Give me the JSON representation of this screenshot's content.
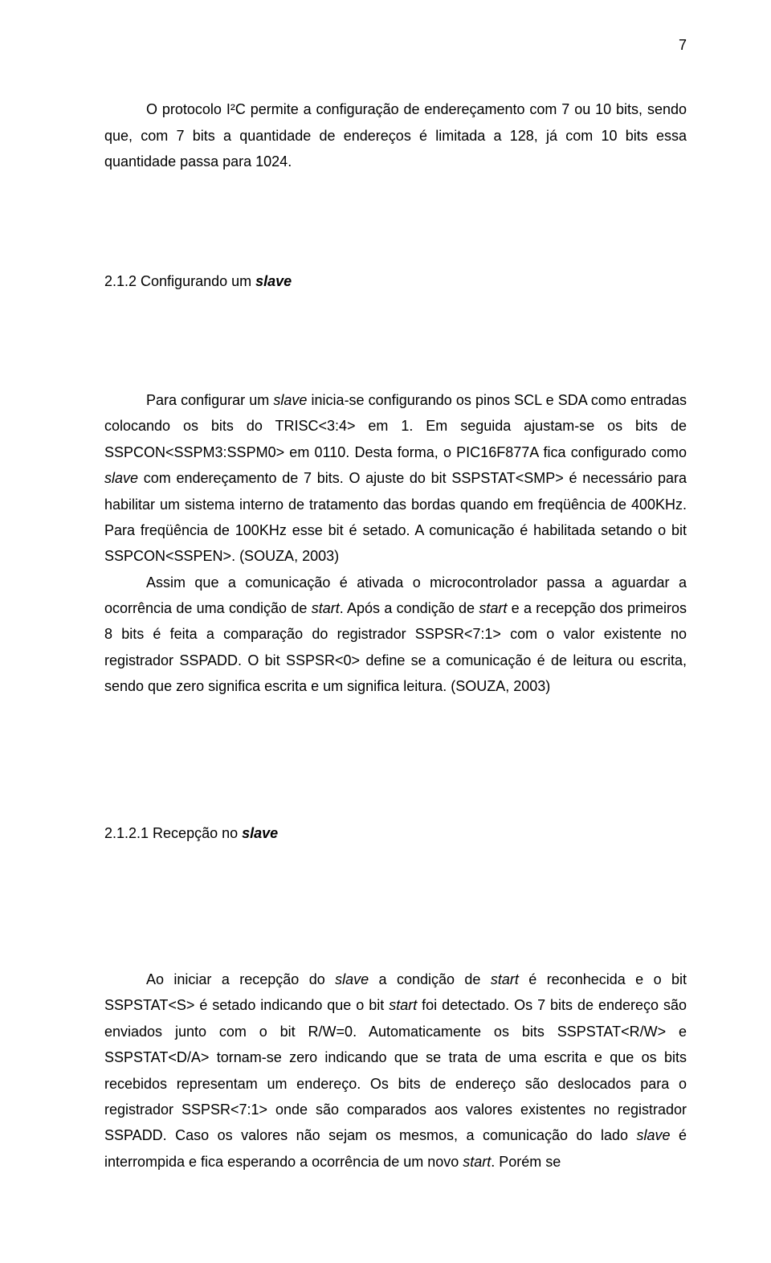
{
  "page_number": "7",
  "intro_paragraph": "O protocolo I²C permite a configuração de endereçamento com 7 ou 10 bits, sendo que, com 7 bits a quantidade de endereços é limitada a 128, já com 10 bits essa quantidade passa para 1024.",
  "section1": {
    "number": "2.1.2 Configurando um ",
    "title_italic": "slave"
  },
  "p1_a": "Para configurar um ",
  "p1_b": "slave",
  "p1_c": " inicia-se configurando os pinos SCL e SDA como entradas colocando os bits do TRISC<3:4> em 1. Em seguida ajustam-se os bits de SSPCON<SSPM3:SSPM0> em 0110. Desta forma, o PIC16F877A fica configurado como ",
  "p1_d": "slave",
  "p1_e": " com endereçamento de 7 bits. O ajuste do bit SSPSTAT<SMP> é necessário para habilitar um sistema interno de tratamento das bordas quando em freqüência de 400KHz. Para freqüência de 100KHz esse bit é setado. A comunicação é habilitada setando o bit SSPCON<SSPEN>. (SOUZA, 2003)",
  "p2_a": "Assim que a comunicação é ativada o microcontrolador passa a aguardar a ocorrência de uma condição de ",
  "p2_b": "start",
  "p2_c": ". Após a condição de ",
  "p2_d": "start",
  "p2_e": " e a recepção dos primeiros 8 bits é feita a comparação do registrador SSPSR<7:1> com o valor existente no registrador SSPADD. O bit SSPSR<0> define se a comunicação é de leitura ou escrita, sendo que zero significa escrita e um significa leitura. (SOUZA, 2003)",
  "section2": {
    "number": "2.1.2.1 Recepção no ",
    "title_italic": "slave"
  },
  "p3_a": "Ao iniciar a recepção do ",
  "p3_b": "slave",
  "p3_c": " a condição de ",
  "p3_d": "start",
  "p3_e": " é reconhecida e o bit SSPSTAT<S> é setado indicando que o bit ",
  "p3_f": "start",
  "p3_g": " foi detectado. Os 7 bits de endereço são enviados junto com o bit R/W=0. Automaticamente os bits SSPSTAT<R/W> e SSPSTAT<D/A> tornam-se zero indicando que se trata de uma escrita e que os bits recebidos representam um endereço. Os bits de endereço são deslocados para o registrador SSPSR<7:1> onde são comparados aos valores existentes no registrador SSPADD. Caso os valores não sejam os mesmos, a comunicação do lado ",
  "p3_h": "slave",
  "p3_i": " é interrompida e fica esperando a ocorrência de um novo ",
  "p3_j": "start",
  "p3_k": ". Porém se"
}
